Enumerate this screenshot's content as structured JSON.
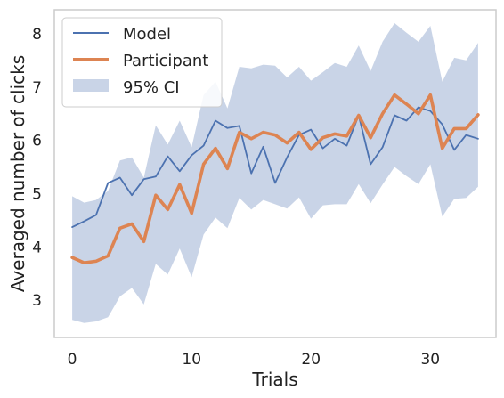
{
  "chart_data": {
    "type": "line",
    "xlabel": "Trials",
    "ylabel": "Averaged number of clicks",
    "xlim": [
      -1.5,
      35.5
    ],
    "ylim": [
      2.3,
      8.45
    ],
    "xticks": [
      0,
      10,
      20,
      30
    ],
    "yticks": [
      3,
      4,
      5,
      6,
      7,
      8
    ],
    "grid": false,
    "legend_position": "top-left",
    "x": [
      0,
      1,
      2,
      3,
      4,
      5,
      6,
      7,
      8,
      9,
      10,
      11,
      12,
      13,
      14,
      15,
      16,
      17,
      18,
      19,
      20,
      21,
      22,
      23,
      24,
      25,
      26,
      27,
      28,
      29,
      30,
      31,
      32,
      33,
      34
    ],
    "series": [
      {
        "name": "Model",
        "kind": "line",
        "color": "#4c72b0",
        "values": [
          4.37,
          4.48,
          4.6,
          5.2,
          5.3,
          4.97,
          5.27,
          5.32,
          5.7,
          5.42,
          5.72,
          5.9,
          6.37,
          6.23,
          6.27,
          5.38,
          5.88,
          5.2,
          5.68,
          6.1,
          6.2,
          5.85,
          6.03,
          5.9,
          6.47,
          5.55,
          5.87,
          6.47,
          6.37,
          6.62,
          6.55,
          6.3,
          5.82,
          6.1,
          6.03
        ]
      },
      {
        "name": "Participant",
        "kind": "line",
        "color": "#dd8452",
        "values": [
          3.8,
          3.7,
          3.73,
          3.83,
          4.35,
          4.43,
          4.1,
          4.97,
          4.7,
          5.17,
          4.63,
          5.55,
          5.85,
          5.47,
          6.15,
          6.03,
          6.15,
          6.1,
          5.95,
          6.15,
          5.83,
          6.05,
          6.12,
          6.08,
          6.47,
          6.05,
          6.5,
          6.85,
          6.68,
          6.5,
          6.85,
          5.85,
          6.22,
          6.22,
          6.48
        ]
      },
      {
        "name": "95% CI",
        "kind": "band",
        "color": "#4c72b0",
        "upper": [
          4.95,
          4.83,
          4.88,
          5.05,
          5.62,
          5.68,
          5.3,
          6.28,
          5.92,
          6.37,
          5.87,
          6.85,
          7.1,
          6.6,
          7.38,
          7.35,
          7.42,
          7.4,
          7.18,
          7.38,
          7.12,
          7.28,
          7.45,
          7.38,
          7.78,
          7.3,
          7.85,
          8.2,
          8.02,
          7.85,
          8.15,
          7.1,
          7.55,
          7.5,
          7.83
        ],
        "lower": [
          2.63,
          2.57,
          2.6,
          2.68,
          3.07,
          3.23,
          2.92,
          3.68,
          3.48,
          3.97,
          3.43,
          4.23,
          4.55,
          4.35,
          4.92,
          4.7,
          4.88,
          4.8,
          4.72,
          4.93,
          4.53,
          4.78,
          4.8,
          4.8,
          5.18,
          4.82,
          5.17,
          5.5,
          5.33,
          5.18,
          5.55,
          4.57,
          4.9,
          4.92,
          5.13
        ]
      }
    ]
  }
}
